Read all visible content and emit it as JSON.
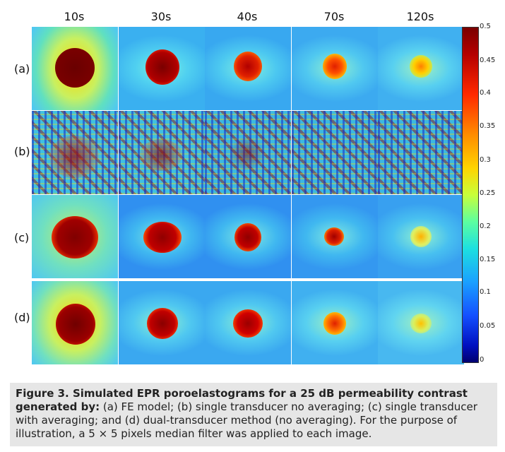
{
  "columns": [
    "10s",
    "30s",
    "40s",
    "70s",
    "120s"
  ],
  "rows": [
    "(a)",
    "(b)",
    "(c)",
    "(d)"
  ],
  "colorbar": {
    "ticks": [
      "0.5",
      "0.45",
      "0.4",
      "0.35",
      "0.3",
      "0.25",
      "0.2",
      "0.15",
      "0.1",
      "0.05",
      "0"
    ],
    "range": [
      0,
      0.5
    ]
  },
  "caption": {
    "bold": "Figure 3. Simulated EPR poroelastograms for a 25 dB permeability contrast generated by:",
    "text": " (a) FE model; (b) single transducer no averaging; (c) single transducer with averaging; and (d) dual-transducer method (no averaging). For the purpose of illustration, a 5 × 5 pixels median filter was applied to each image."
  },
  "colors": {
    "dark_red": "#7a0000",
    "red": "#e01000",
    "yellow": "#ffe000",
    "cyan": "#40d8f0",
    "blue": "#1a60ff"
  }
}
